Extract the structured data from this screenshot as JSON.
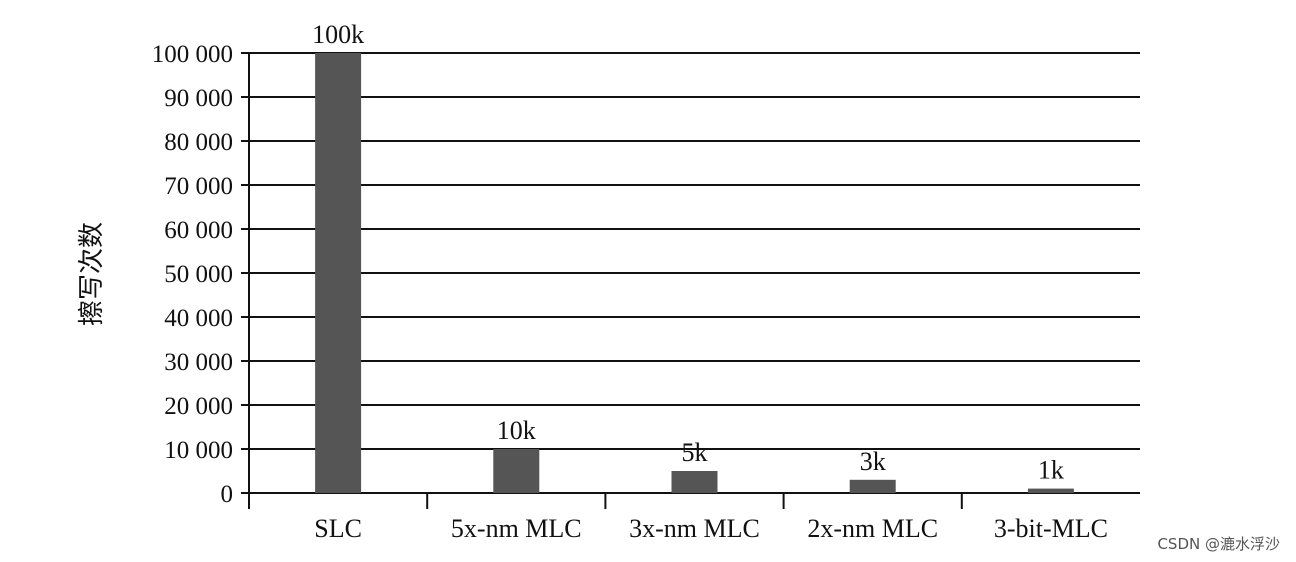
{
  "chart_data": {
    "type": "bar",
    "title": "",
    "xlabel": "",
    "ylabel": "擦写次数",
    "categories": [
      "SLC",
      "5x-nm MLC",
      "3x-nm MLC",
      "2x-nm MLC",
      "3-bit-MLC"
    ],
    "values": [
      100000,
      10000,
      5000,
      3000,
      1000
    ],
    "data_labels": [
      "100k",
      "10k",
      "5k",
      "3k",
      "1k"
    ],
    "ylim": [
      0,
      100000
    ],
    "yticks": [
      0,
      10000,
      20000,
      30000,
      40000,
      50000,
      60000,
      70000,
      80000,
      90000,
      100000
    ],
    "ytick_labels": [
      "0",
      "10 000",
      "20 000",
      "30 000",
      "40 000",
      "50 000",
      "60 000",
      "70 000",
      "80 000",
      "90 000",
      "100 000"
    ],
    "grid": true,
    "legend": "none",
    "colors": {
      "bar": "#555555",
      "grid": "#111111",
      "text": "#111111"
    }
  },
  "watermark": "CSDN @漉水浮沙"
}
